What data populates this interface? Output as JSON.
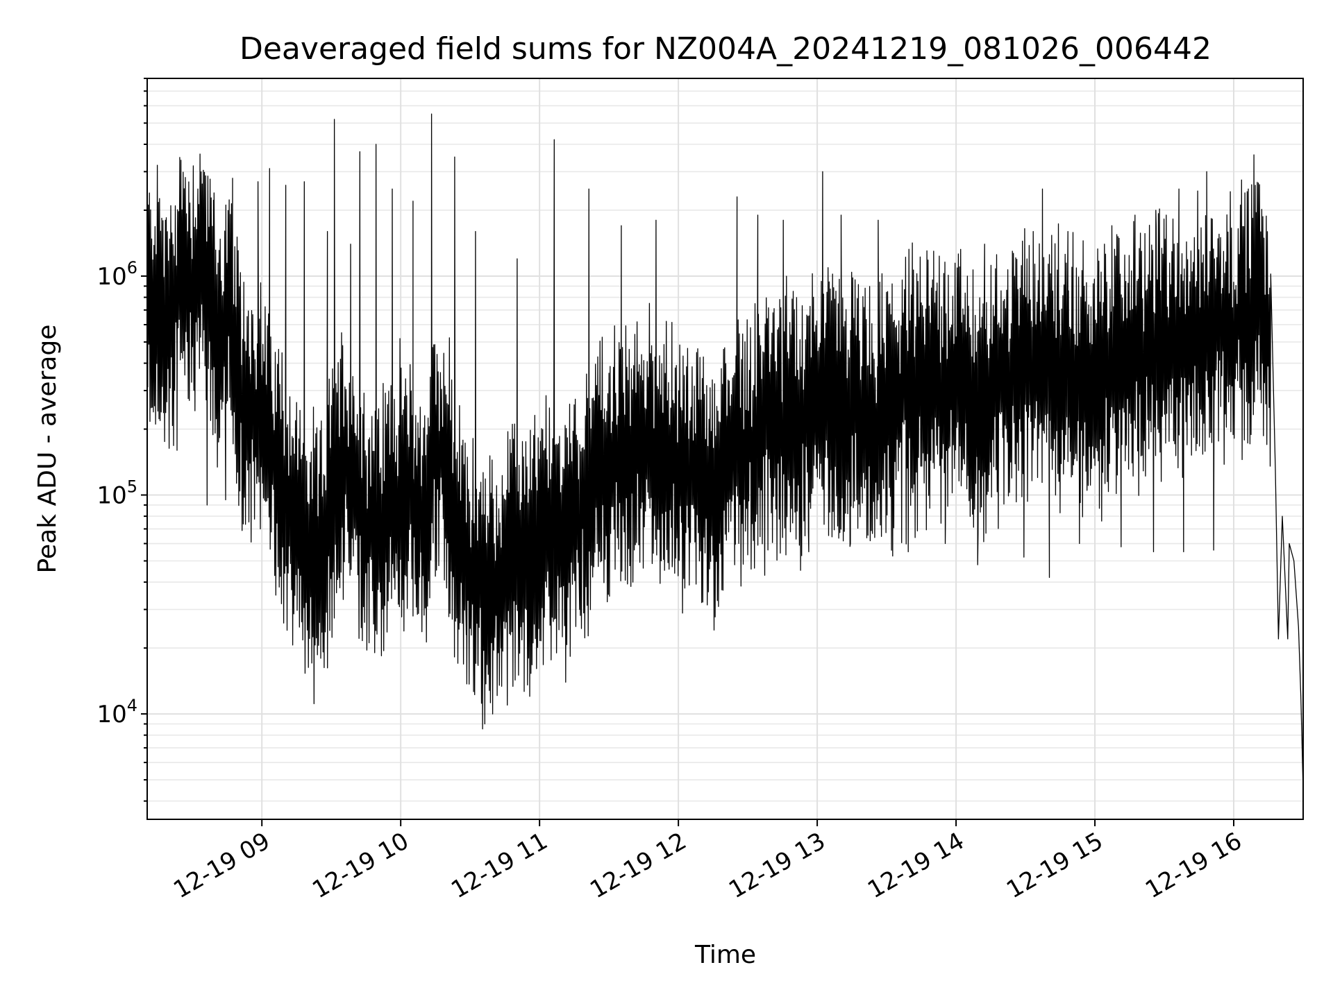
{
  "chart_data": {
    "type": "line",
    "title": "Deaveraged field sums for NZ004A_20241219_081026_006442",
    "xlabel": "Time",
    "ylabel": "Peak ADU - average",
    "yscale": "log",
    "xlim": [
      "2024-12-19T08:10:26",
      "2024-12-19T16:30:00"
    ],
    "ylim": [
      3300,
      8000000
    ],
    "grid": true,
    "x_ticks": [
      {
        "value": "2024-12-19T09:00",
        "label": "12-19 09"
      },
      {
        "value": "2024-12-19T10:00",
        "label": "12-19 10"
      },
      {
        "value": "2024-12-19T11:00",
        "label": "12-19 11"
      },
      {
        "value": "2024-12-19T12:00",
        "label": "12-19 12"
      },
      {
        "value": "2024-12-19T13:00",
        "label": "12-19 13"
      },
      {
        "value": "2024-12-19T14:00",
        "label": "12-19 14"
      },
      {
        "value": "2024-12-19T15:00",
        "label": "12-19 15"
      },
      {
        "value": "2024-12-19T16:00",
        "label": "12-19 16"
      }
    ],
    "y_ticks": [
      {
        "value": 10000,
        "base": "10",
        "exp": "4"
      },
      {
        "value": 100000,
        "base": "10",
        "exp": "5"
      },
      {
        "value": 1000000,
        "base": "10",
        "exp": "6"
      }
    ],
    "series": [
      {
        "color": "#000000",
        "points": [
          [
            "2024-12-19T08:10",
            650000
          ],
          [
            "2024-12-19T08:15",
            850000
          ],
          [
            "2024-12-19T08:20",
            500000
          ],
          [
            "2024-12-19T08:25",
            1100000
          ],
          [
            "2024-12-19T08:30",
            900000
          ],
          [
            "2024-12-19T08:35",
            1300000
          ],
          [
            "2024-12-19T08:40",
            450000
          ],
          [
            "2024-12-19T08:45",
            700000
          ],
          [
            "2024-12-19T08:50",
            300000
          ],
          [
            "2024-12-19T08:55",
            250000
          ],
          [
            "2024-12-19T09:00",
            220000
          ],
          [
            "2024-12-19T09:05",
            150000
          ],
          [
            "2024-12-19T09:10",
            110000
          ],
          [
            "2024-12-19T09:15",
            70000
          ],
          [
            "2024-12-19T09:20",
            55000
          ],
          [
            "2024-12-19T09:25",
            48000
          ],
          [
            "2024-12-19T09:30",
            90000
          ],
          [
            "2024-12-19T09:35",
            150000
          ],
          [
            "2024-12-19T09:40",
            110000
          ],
          [
            "2024-12-19T09:45",
            75000
          ],
          [
            "2024-12-19T09:50",
            65000
          ],
          [
            "2024-12-19T09:55",
            90000
          ],
          [
            "2024-12-19T10:00",
            110000
          ],
          [
            "2024-12-19T10:05",
            95000
          ],
          [
            "2024-12-19T10:10",
            70000
          ],
          [
            "2024-12-19T10:15",
            160000
          ],
          [
            "2024-12-19T10:20",
            130000
          ],
          [
            "2024-12-19T10:25",
            60000
          ],
          [
            "2024-12-19T10:30",
            45000
          ],
          [
            "2024-12-19T10:35",
            38000
          ],
          [
            "2024-12-19T10:40",
            35000
          ],
          [
            "2024-12-19T10:45",
            45000
          ],
          [
            "2024-12-19T10:50",
            50000
          ],
          [
            "2024-12-19T10:55",
            55000
          ],
          [
            "2024-12-19T11:00",
            60000
          ],
          [
            "2024-12-19T11:05",
            75000
          ],
          [
            "2024-12-19T11:10",
            65000
          ],
          [
            "2024-12-19T11:15",
            80000
          ],
          [
            "2024-12-19T11:20",
            100000
          ],
          [
            "2024-12-19T11:25",
            120000
          ],
          [
            "2024-12-19T11:30",
            130000
          ],
          [
            "2024-12-19T11:35",
            150000
          ],
          [
            "2024-12-19T11:40",
            140000
          ],
          [
            "2024-12-19T11:45",
            160000
          ],
          [
            "2024-12-19T11:50",
            170000
          ],
          [
            "2024-12-19T11:55",
            150000
          ],
          [
            "2024-12-19T12:00",
            130000
          ],
          [
            "2024-12-19T12:05",
            120000
          ],
          [
            "2024-12-19T12:10",
            110000
          ],
          [
            "2024-12-19T12:15",
            100000
          ],
          [
            "2024-12-19T12:20",
            130000
          ],
          [
            "2024-12-19T12:25",
            160000
          ],
          [
            "2024-12-19T12:30",
            170000
          ],
          [
            "2024-12-19T12:35",
            190000
          ],
          [
            "2024-12-19T12:40",
            210000
          ],
          [
            "2024-12-19T12:45",
            220000
          ],
          [
            "2024-12-19T12:50",
            200000
          ],
          [
            "2024-12-19T12:55",
            240000
          ],
          [
            "2024-12-19T13:00",
            300000
          ],
          [
            "2024-12-19T13:05",
            280000
          ],
          [
            "2024-12-19T13:10",
            260000
          ],
          [
            "2024-12-19T13:15",
            250000
          ],
          [
            "2024-12-19T13:20",
            230000
          ],
          [
            "2024-12-19T13:25",
            200000
          ],
          [
            "2024-12-19T13:30",
            240000
          ],
          [
            "2024-12-19T13:35",
            270000
          ],
          [
            "2024-12-19T13:40",
            300000
          ],
          [
            "2024-12-19T13:45",
            320000
          ],
          [
            "2024-12-19T13:50",
            330000
          ],
          [
            "2024-12-19T13:55",
            340000
          ],
          [
            "2024-12-19T14:00",
            330000
          ],
          [
            "2024-12-19T14:05",
            300000
          ],
          [
            "2024-12-19T14:10",
            260000
          ],
          [
            "2024-12-19T14:15",
            250000
          ],
          [
            "2024-12-19T14:20",
            320000
          ],
          [
            "2024-12-19T14:25",
            420000
          ],
          [
            "2024-12-19T14:30",
            400000
          ],
          [
            "2024-12-19T14:35",
            350000
          ],
          [
            "2024-12-19T14:40",
            420000
          ],
          [
            "2024-12-19T14:45",
            380000
          ],
          [
            "2024-12-19T14:50",
            360000
          ],
          [
            "2024-12-19T14:55",
            330000
          ],
          [
            "2024-12-19T15:00",
            320000
          ],
          [
            "2024-12-19T15:05",
            350000
          ],
          [
            "2024-12-19T15:10",
            390000
          ],
          [
            "2024-12-19T15:15",
            420000
          ],
          [
            "2024-12-19T15:20",
            450000
          ],
          [
            "2024-12-19T15:25",
            480000
          ],
          [
            "2024-12-19T15:30",
            500000
          ],
          [
            "2024-12-19T15:35",
            460000
          ],
          [
            "2024-12-19T15:40",
            480000
          ],
          [
            "2024-12-19T15:45",
            520000
          ],
          [
            "2024-12-19T15:50",
            540000
          ],
          [
            "2024-12-19T15:55",
            600000
          ],
          [
            "2024-12-19T16:00",
            560000
          ],
          [
            "2024-12-19T16:05",
            700000
          ],
          [
            "2024-12-19T16:10",
            900000
          ],
          [
            "2024-12-19T16:15",
            500000
          ],
          [
            "2024-12-19T16:18",
            130000
          ],
          [
            "2024-12-19T16:21",
            80000
          ],
          [
            "2024-12-19T16:24",
            60000
          ],
          [
            "2024-12-19T16:26",
            50000
          ],
          [
            "2024-12-19T16:28",
            25000
          ],
          [
            "2024-12-19T16:29",
            12000
          ],
          [
            "2024-12-19T16:30",
            4500
          ]
        ],
        "spikes": [
          [
            "2024-12-19T08:18",
            1800000
          ],
          [
            "2024-12-19T08:32",
            2500000
          ],
          [
            "2024-12-19T08:39",
            2400000
          ],
          [
            "2024-12-19T08:47",
            2800000
          ],
          [
            "2024-12-19T08:58",
            2700000
          ],
          [
            "2024-12-19T09:03",
            3100000
          ],
          [
            "2024-12-19T09:10",
            2600000
          ],
          [
            "2024-12-19T09:18",
            2700000
          ],
          [
            "2024-12-19T09:28",
            1600000
          ],
          [
            "2024-12-19T09:31",
            5200000
          ],
          [
            "2024-12-19T09:38",
            1400000
          ],
          [
            "2024-12-19T09:42",
            3700000
          ],
          [
            "2024-12-19T09:49",
            4000000
          ],
          [
            "2024-12-19T09:56",
            2500000
          ],
          [
            "2024-12-19T10:05",
            2200000
          ],
          [
            "2024-12-19T10:13",
            5500000
          ],
          [
            "2024-12-19T10:23",
            3500000
          ],
          [
            "2024-12-19T10:32",
            1600000
          ],
          [
            "2024-12-19T10:50",
            1200000
          ],
          [
            "2024-12-19T11:06",
            4200000
          ],
          [
            "2024-12-19T11:21",
            2500000
          ],
          [
            "2024-12-19T11:35",
            1700000
          ],
          [
            "2024-12-19T11:50",
            1800000
          ],
          [
            "2024-12-19T12:25",
            2300000
          ],
          [
            "2024-12-19T12:34",
            1900000
          ],
          [
            "2024-12-19T12:45",
            1800000
          ],
          [
            "2024-12-19T13:02",
            3000000
          ],
          [
            "2024-12-19T13:10",
            1900000
          ],
          [
            "2024-12-19T13:26",
            1800000
          ],
          [
            "2024-12-19T13:50",
            1300000
          ],
          [
            "2024-12-19T14:12",
            1400000
          ],
          [
            "2024-12-19T14:24",
            1300000
          ],
          [
            "2024-12-19T14:33",
            1600000
          ],
          [
            "2024-12-19T14:37",
            2500000
          ],
          [
            "2024-12-19T14:48",
            1600000
          ],
          [
            "2024-12-19T15:07",
            1700000
          ],
          [
            "2024-12-19T15:17",
            1900000
          ],
          [
            "2024-12-19T15:26",
            2000000
          ],
          [
            "2024-12-19T15:36",
            2500000
          ],
          [
            "2024-12-19T15:48",
            3000000
          ],
          [
            "2024-12-19T15:54",
            1500000
          ],
          [
            "2024-12-19T16:09",
            2600000
          ]
        ],
        "dips": [
          [
            "2024-12-19T08:23",
            160000
          ],
          [
            "2024-12-19T08:36",
            90000
          ],
          [
            "2024-12-19T08:44",
            95000
          ],
          [
            "2024-12-19T08:52",
            140000
          ],
          [
            "2024-12-19T08:59",
            70000
          ],
          [
            "2024-12-19T09:16",
            32000
          ],
          [
            "2024-12-19T09:24",
            30000
          ],
          [
            "2024-12-19T09:33",
            42000
          ],
          [
            "2024-12-19T09:45",
            31000
          ],
          [
            "2024-12-19T09:58",
            45000
          ],
          [
            "2024-12-19T10:05",
            28000
          ],
          [
            "2024-12-19T10:28",
            23000
          ],
          [
            "2024-12-19T10:33",
            17000
          ],
          [
            "2024-12-19T10:43",
            20000
          ],
          [
            "2024-12-19T10:53",
            25000
          ],
          [
            "2024-12-19T11:07",
            19000
          ],
          [
            "2024-12-19T11:17",
            30000
          ],
          [
            "2024-12-19T11:40",
            40000
          ],
          [
            "2024-12-19T11:57",
            47000
          ],
          [
            "2024-12-19T12:24",
            48000
          ],
          [
            "2024-12-19T12:37",
            43000
          ],
          [
            "2024-12-19T12:56",
            55000
          ],
          [
            "2024-12-19T13:14",
            60000
          ],
          [
            "2024-12-19T13:39",
            55000
          ],
          [
            "2024-12-19T13:55",
            60000
          ],
          [
            "2024-12-19T14:09",
            48000
          ],
          [
            "2024-12-19T14:29",
            52000
          ],
          [
            "2024-12-19T14:40",
            42000
          ],
          [
            "2024-12-19T14:53",
            60000
          ],
          [
            "2024-12-19T15:11",
            58000
          ],
          [
            "2024-12-19T15:25",
            55000
          ],
          [
            "2024-12-19T15:38",
            55000
          ],
          [
            "2024-12-19T15:51",
            56000
          ],
          [
            "2024-12-19T16:19",
            22000
          ],
          [
            "2024-12-19T16:23",
            22000
          ]
        ]
      }
    ]
  }
}
